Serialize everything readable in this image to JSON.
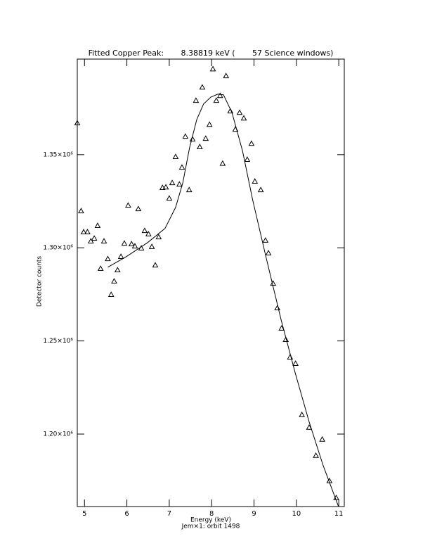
{
  "chart_data": {
    "type": "scatter",
    "title": "Fitted Copper Peak:       8.38819 keV (       57 Science windows)",
    "x_label": "Energy (keV)",
    "subtitle": "Jem×1: orbit 1498",
    "y_label": "Detector counts",
    "xlim": [
      4.83,
      11.13
    ],
    "ylim": [
      1161100,
      1401300
    ],
    "xticks": [
      5,
      6,
      7,
      8,
      9,
      10,
      11
    ],
    "yticks": [
      {
        "value": 1200000,
        "label": "1.20×10⁶"
      },
      {
        "value": 1250000,
        "label": "1.25×10⁶"
      },
      {
        "value": 1300000,
        "label": "1.30×10⁶"
      },
      {
        "value": 1350000,
        "label": "1.35×10⁶"
      }
    ],
    "series": [
      {
        "type": "scatter",
        "marker": "triangle",
        "color": "#000000",
        "x": [
          4.83,
          4.92,
          4.98,
          5.07,
          5.15,
          5.23,
          5.31,
          5.38,
          5.46,
          5.55,
          5.63,
          5.7,
          5.78,
          5.86,
          5.94,
          6.03,
          6.11,
          6.19,
          6.27,
          6.34,
          6.42,
          6.51,
          6.59,
          6.67,
          6.75,
          6.84,
          6.92,
          7.0,
          7.07,
          7.15,
          7.24,
          7.3,
          7.38,
          7.47,
          7.55,
          7.63,
          7.72,
          7.78,
          7.86,
          7.95,
          8.03,
          8.11,
          8.2,
          8.26,
          8.34,
          8.44,
          8.56,
          8.66,
          8.76,
          8.84,
          8.94,
          9.02,
          9.16,
          9.27,
          9.34,
          9.45,
          9.55,
          9.65,
          9.75,
          9.85,
          9.98,
          10.13,
          10.3,
          10.46,
          10.61,
          10.78,
          10.94
        ],
        "values": [
          1367000,
          1319800,
          1308500,
          1308500,
          1303600,
          1305100,
          1311900,
          1288900,
          1303600,
          1294100,
          1274900,
          1282100,
          1288100,
          1295300,
          1302400,
          1322800,
          1302100,
          1300900,
          1320900,
          1299800,
          1309200,
          1307400,
          1300600,
          1290700,
          1305800,
          1332300,
          1332600,
          1326600,
          1334900,
          1348900,
          1334100,
          1343200,
          1359800,
          1331100,
          1358300,
          1379100,
          1354200,
          1386200,
          1358700,
          1366200,
          1396000,
          1379100,
          1381700,
          1345300,
          1392300,
          1373400,
          1363600,
          1372600,
          1369600,
          1347400,
          1356000,
          1335700,
          1331100,
          1304000,
          1297200,
          1280900,
          1267700,
          1256800,
          1250700,
          1241300,
          1237900,
          1210400,
          1203600,
          1188500,
          1197200,
          1174900,
          1165800
        ]
      },
      {
        "type": "line",
        "color": "#000000",
        "x": [
          5.55,
          5.99,
          6.49,
          6.9,
          7.15,
          7.32,
          7.48,
          7.65,
          7.81,
          7.98,
          8.15,
          8.28,
          8.48,
          8.73,
          8.97,
          9.3,
          9.64,
          9.97,
          10.3,
          10.63,
          10.99
        ],
        "values": [
          1289600,
          1295300,
          1302800,
          1310400,
          1321700,
          1334900,
          1353800,
          1368900,
          1377200,
          1380900,
          1382500,
          1382100,
          1372600,
          1351900,
          1325500,
          1293400,
          1261300,
          1233000,
          1206600,
          1183200,
          1161300
        ]
      }
    ]
  }
}
